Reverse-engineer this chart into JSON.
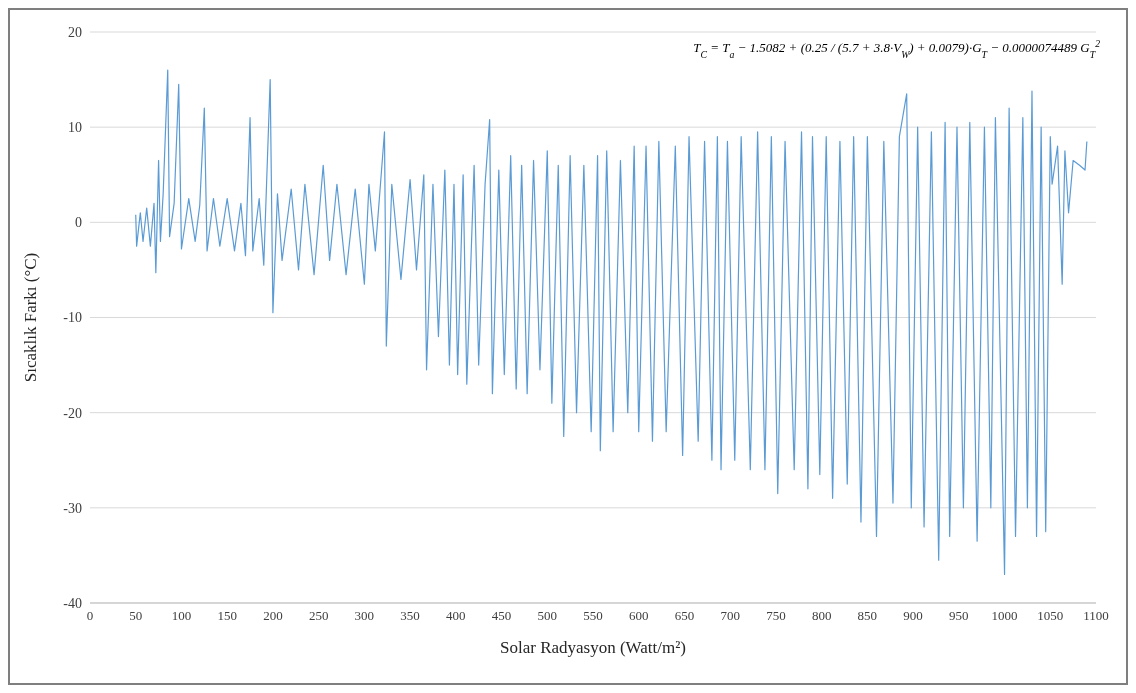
{
  "chart_data": {
    "type": "line",
    "xlabel": "Solar Radyasyon  (Watt/m²)",
    "ylabel": "Sıcaklık Farkı  (°C)",
    "annotations": [
      "T$_{C}$ = T$_{a}$ − 1.5082 + (0.25 / (5.7 + 3.8·V$_{W}$) + 0.0079)·G$_{T}$ − 0.0000074489 G$_{T}$$^{2}$"
    ],
    "color": "#5b9bd5",
    "grid": "y",
    "marker": "none",
    "line_style": "solid",
    "xlim": [
      0,
      1100
    ],
    "xticks": [
      0,
      50,
      100,
      150,
      200,
      250,
      300,
      350,
      400,
      450,
      500,
      550,
      600,
      650,
      700,
      750,
      800,
      850,
      900,
      950,
      1000,
      1050,
      1100
    ],
    "ylim": [
      -40,
      20
    ],
    "yticks": [
      -40,
      -30,
      -20,
      -10,
      0,
      10,
      20
    ],
    "x": [
      50,
      51,
      55,
      58,
      62,
      66,
      70,
      72,
      75,
      77,
      80,
      85,
      87,
      92,
      97,
      100,
      108,
      115,
      120,
      125,
      128,
      135,
      142,
      150,
      158,
      165,
      170,
      175,
      178,
      185,
      190,
      197,
      200,
      205,
      210,
      220,
      228,
      235,
      245,
      255,
      262,
      270,
      280,
      290,
      300,
      305,
      312,
      318,
      322,
      324,
      330,
      340,
      350,
      357,
      365,
      368,
      375,
      381,
      388,
      393,
      398,
      402,
      408,
      412,
      420,
      425,
      432,
      437,
      440,
      447,
      453,
      460,
      466,
      472,
      478,
      485,
      492,
      500,
      505,
      512,
      518,
      525,
      532,
      540,
      548,
      555,
      558,
      565,
      572,
      580,
      588,
      595,
      600,
      608,
      615,
      622,
      630,
      640,
      648,
      655,
      665,
      672,
      680,
      686,
      690,
      697,
      705,
      712,
      722,
      730,
      738,
      745,
      752,
      760,
      770,
      778,
      785,
      790,
      798,
      805,
      812,
      820,
      828,
      835,
      843,
      850,
      860,
      868,
      878,
      885,
      893,
      898,
      905,
      912,
      920,
      928,
      935,
      940,
      948,
      955,
      962,
      970,
      978,
      985,
      990,
      1000,
      1005,
      1012,
      1020,
      1025,
      1030,
      1035,
      1040,
      1045,
      1050,
      1052,
      1058,
      1063,
      1066,
      1070,
      1075,
      1082,
      1088,
      1090
    ],
    "values": [
      0.8,
      -2.5,
      1,
      -2,
      1.5,
      -2.5,
      2,
      -5.3,
      6.5,
      -2,
      3,
      16,
      -1.5,
      2,
      14.5,
      -2.8,
      2.5,
      -2,
      1.8,
      12,
      -3,
      2.5,
      -2.5,
      2.5,
      -3,
      2,
      -3.5,
      11,
      -3,
      2.5,
      -4.5,
      15,
      -9.5,
      3,
      -4,
      3.5,
      -5,
      4,
      -5.5,
      6,
      -4,
      4,
      -5.5,
      3.5,
      -6.5,
      4,
      -3,
      4.5,
      9.5,
      -13,
      4,
      -6,
      4.5,
      -5,
      5,
      -15.5,
      4,
      -12,
      5.5,
      -15,
      4,
      -16,
      5,
      -17,
      6,
      -15,
      4,
      10.8,
      -18,
      5.5,
      -16,
      7,
      -17.5,
      6,
      -18,
      6.5,
      -15.5,
      7.5,
      -19,
      6,
      -22.5,
      7,
      -20,
      6,
      -22,
      7,
      -24,
      7.5,
      -22,
      6.5,
      -20,
      8,
      -22,
      8,
      -23,
      8.5,
      -22,
      8,
      -24.5,
      9,
      -23,
      8.5,
      -25,
      9,
      -26,
      8.5,
      -25,
      9,
      -26,
      9.5,
      -26,
      9,
      -28.5,
      8.5,
      -26,
      9.5,
      -28,
      9,
      -26.5,
      9,
      -29,
      8.5,
      -27.5,
      9,
      -31.5,
      9,
      -33,
      8.5,
      -29.5,
      9,
      13.5,
      -30,
      10,
      -32,
      9.5,
      -35.5,
      10.5,
      -33,
      10,
      -30,
      10.5,
      -33.5,
      10,
      -30,
      11,
      -37,
      12,
      -33,
      11,
      -30,
      13.8,
      -33,
      10,
      -32.5,
      9,
      4,
      8,
      -6.5,
      7.5,
      1,
      6.5,
      6,
      5.5,
      8.5
    ]
  }
}
